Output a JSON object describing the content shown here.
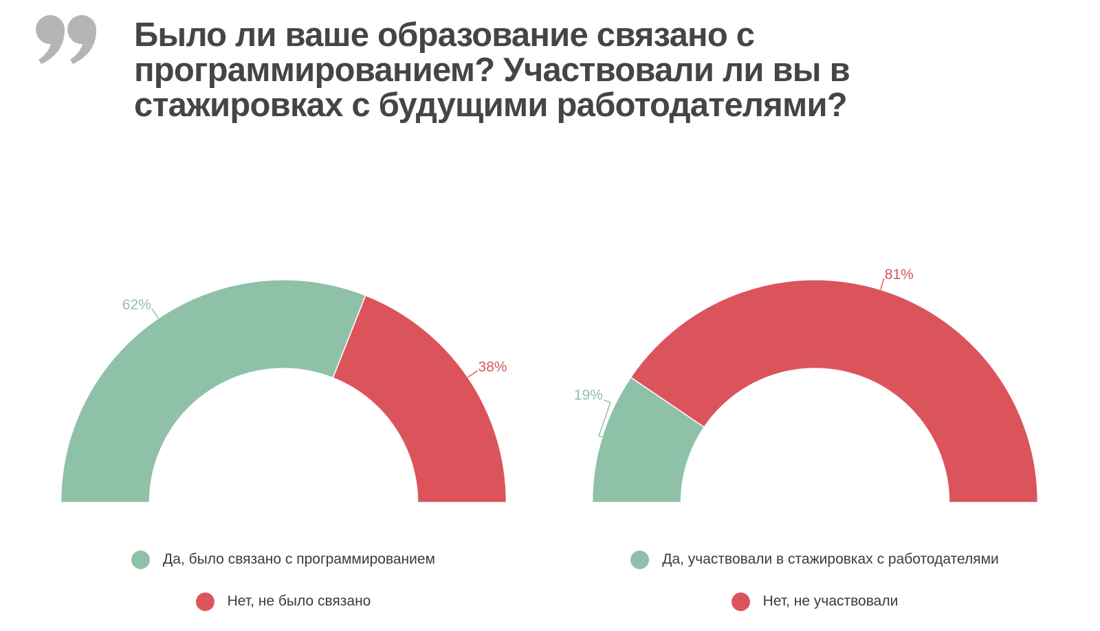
{
  "header": {
    "quote_icon": "closing-double-quote-icon",
    "title_lines": [
      "Было ли ваше образование связано с",
      "программированием? Участвовали ли вы в",
      "стажировках с будущими работодателями?"
    ]
  },
  "colors": {
    "yes": "#8fc1a8",
    "no": "#dc545b",
    "title": "#454545",
    "quote": "#b5b5b5",
    "legend_text": "#3b3b3b"
  },
  "chart_data": [
    {
      "type": "pie",
      "variant": "half-donut",
      "title": "Было ли ваше образование связано с программированием?",
      "categories": [
        "Да, было связано с программированием",
        "Нет, не было связано"
      ],
      "values": [
        62,
        38
      ],
      "labels": [
        "62%",
        "38%"
      ],
      "colors": [
        "#8fc1a8",
        "#dc545b"
      ],
      "legend_position": "bottom"
    },
    {
      "type": "pie",
      "variant": "half-donut",
      "title": "Участвовали ли вы в стажировках с будущими работодателями?",
      "categories": [
        "Да, участвовали в стажировках с работодателями",
        "Нет, не участвовали"
      ],
      "values": [
        19,
        81
      ],
      "labels": [
        "19%",
        "81%"
      ],
      "colors": [
        "#8fc1a8",
        "#dc545b"
      ],
      "legend_position": "bottom"
    }
  ]
}
